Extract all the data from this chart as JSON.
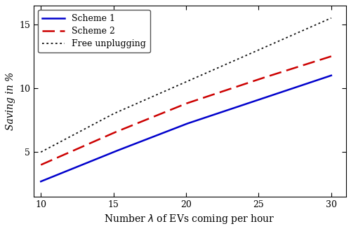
{
  "x": [
    10,
    15,
    20,
    25,
    30
  ],
  "scheme1_y": [
    2.7,
    5.0,
    7.2,
    9.1,
    11.0
  ],
  "scheme2_y": [
    4.0,
    6.5,
    8.8,
    10.7,
    12.5
  ],
  "free_y": [
    5.0,
    8.0,
    10.5,
    13.0,
    15.5
  ],
  "scheme1_color": "#0000cc",
  "scheme2_color": "#cc0000",
  "free_color": "#111111",
  "xlabel": "Number $\\lambda$ of EVs coming per hour",
  "ylabel": "Saving in %",
  "xlim": [
    9.5,
    31
  ],
  "ylim": [
    1.5,
    16.5
  ],
  "xticks": [
    10,
    15,
    20,
    25,
    30
  ],
  "yticks": [
    5,
    10,
    15
  ],
  "legend_scheme1": "Scheme 1",
  "legend_scheme2": "Scheme 2",
  "legend_free": "Free unplugging",
  "label_fontsize": 10,
  "legend_fontsize": 9,
  "tick_fontsize": 9
}
